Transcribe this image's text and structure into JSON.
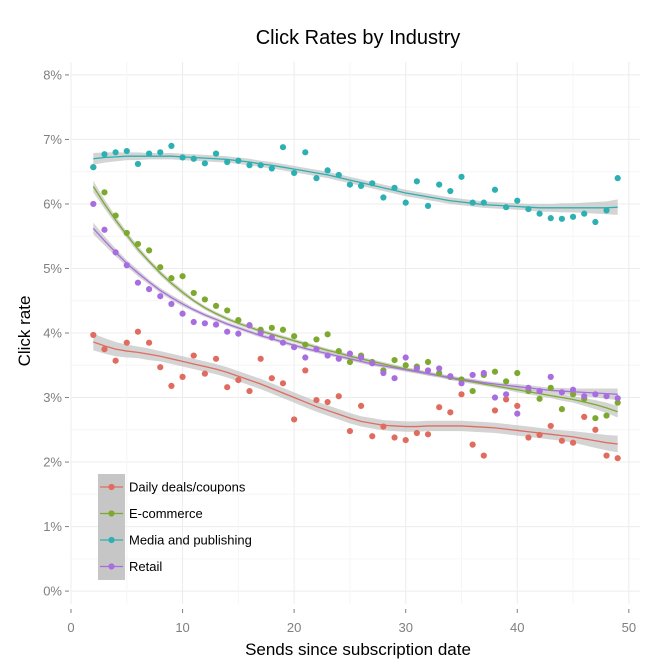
{
  "chart_data": {
    "type": "scatter",
    "title": "Click Rates by Industry",
    "xlabel": "Sends since subscription date",
    "ylabel": "Click rate",
    "xlim": [
      0,
      51
    ],
    "ylim": [
      -0.2,
      8.2
    ],
    "x_ticks": [
      0,
      10,
      20,
      30,
      40,
      50
    ],
    "x_tick_labels": [
      "0",
      "10",
      "20",
      "30",
      "40",
      "50"
    ],
    "y_ticks": [
      0,
      1,
      2,
      3,
      4,
      5,
      6,
      7,
      8
    ],
    "y_tick_labels": [
      "0%",
      "1%",
      "2%",
      "3%",
      "4%",
      "5%",
      "6%",
      "7%",
      "8%"
    ],
    "grid": true,
    "legend_position": "bottom-left",
    "smoothing": "loess with confidence band",
    "x": [
      2,
      3,
      4,
      5,
      6,
      7,
      8,
      9,
      10,
      11,
      12,
      13,
      14,
      15,
      16,
      17,
      18,
      19,
      20,
      21,
      22,
      23,
      24,
      25,
      26,
      27,
      28,
      29,
      30,
      31,
      32,
      33,
      34,
      35,
      36,
      37,
      38,
      39,
      40,
      41,
      42,
      43,
      44,
      45,
      46,
      47,
      48,
      49
    ],
    "series": [
      {
        "name": "Daily deals/coupons",
        "color": "#e06c60",
        "values": [
          3.97,
          3.75,
          3.57,
          3.85,
          4.02,
          3.85,
          3.47,
          3.18,
          3.32,
          3.65,
          3.37,
          3.6,
          3.16,
          3.27,
          3.1,
          3.6,
          3.3,
          3.22,
          2.66,
          3.42,
          2.96,
          2.93,
          3.02,
          2.48,
          2.87,
          2.4,
          2.55,
          2.38,
          2.34,
          2.45,
          2.43,
          2.85,
          2.77,
          3.05,
          2.27,
          2.1,
          2.8,
          2.97,
          2.87,
          2.38,
          2.42,
          2.56,
          2.33,
          2.3,
          2.7,
          2.5,
          2.1,
          2.06
        ],
        "trend": [
          3.86,
          3.8,
          3.75,
          3.72,
          3.7,
          3.67,
          3.64,
          3.6,
          3.56,
          3.52,
          3.48,
          3.44,
          3.39,
          3.33,
          3.27,
          3.21,
          3.14,
          3.07,
          3.0,
          2.93,
          2.86,
          2.8,
          2.74,
          2.68,
          2.63,
          2.6,
          2.57,
          2.56,
          2.55,
          2.55,
          2.56,
          2.56,
          2.56,
          2.56,
          2.55,
          2.54,
          2.53,
          2.51,
          2.49,
          2.47,
          2.45,
          2.43,
          2.41,
          2.39,
          2.36,
          2.33,
          2.3,
          2.28
        ],
        "band": [
          0.13,
          0.12,
          0.11,
          0.1,
          0.09,
          0.09,
          0.08,
          0.08,
          0.08,
          0.08,
          0.08,
          0.08,
          0.08,
          0.08,
          0.08,
          0.08,
          0.08,
          0.08,
          0.08,
          0.08,
          0.08,
          0.08,
          0.08,
          0.08,
          0.08,
          0.08,
          0.08,
          0.08,
          0.08,
          0.08,
          0.08,
          0.08,
          0.08,
          0.08,
          0.08,
          0.08,
          0.08,
          0.08,
          0.08,
          0.08,
          0.08,
          0.08,
          0.08,
          0.09,
          0.1,
          0.11,
          0.12,
          0.13
        ]
      },
      {
        "name": "E-commerce",
        "color": "#7daa2e",
        "values": [
          6.57,
          6.18,
          5.82,
          5.55,
          5.38,
          5.28,
          5.02,
          4.85,
          4.88,
          4.62,
          4.52,
          4.42,
          4.35,
          4.2,
          4.12,
          4.05,
          4.08,
          4.05,
          3.95,
          3.82,
          3.9,
          3.98,
          3.72,
          3.55,
          3.65,
          3.55,
          3.42,
          3.58,
          3.5,
          3.48,
          3.55,
          3.38,
          3.32,
          3.28,
          3.1,
          3.35,
          3.4,
          3.25,
          3.38,
          3.1,
          2.98,
          3.15,
          2.82,
          3.05,
          2.98,
          2.68,
          2.72,
          2.92
        ],
        "trend": [
          6.27,
          6.0,
          5.75,
          5.52,
          5.3,
          5.11,
          4.93,
          4.77,
          4.63,
          4.5,
          4.39,
          4.3,
          4.22,
          4.15,
          4.09,
          4.03,
          3.98,
          3.93,
          3.88,
          3.83,
          3.78,
          3.73,
          3.69,
          3.64,
          3.6,
          3.56,
          3.52,
          3.48,
          3.44,
          3.41,
          3.37,
          3.34,
          3.3,
          3.27,
          3.24,
          3.21,
          3.18,
          3.15,
          3.12,
          3.09,
          3.06,
          3.03,
          3.0,
          2.97,
          2.93,
          2.89,
          2.84,
          2.78
        ],
        "band": [
          0.09,
          0.07,
          0.06,
          0.05,
          0.05,
          0.04,
          0.04,
          0.04,
          0.04,
          0.03,
          0.03,
          0.03,
          0.03,
          0.03,
          0.03,
          0.03,
          0.03,
          0.03,
          0.03,
          0.03,
          0.03,
          0.03,
          0.03,
          0.03,
          0.03,
          0.03,
          0.03,
          0.03,
          0.03,
          0.03,
          0.03,
          0.03,
          0.03,
          0.03,
          0.03,
          0.03,
          0.03,
          0.03,
          0.04,
          0.04,
          0.04,
          0.04,
          0.05,
          0.05,
          0.06,
          0.07,
          0.08,
          0.09
        ]
      },
      {
        "name": "Media and publishing",
        "color": "#2cb0b2",
        "values": [
          6.57,
          6.77,
          6.8,
          6.82,
          6.62,
          6.78,
          6.8,
          6.9,
          6.72,
          6.7,
          6.63,
          6.78,
          6.65,
          6.67,
          6.6,
          6.6,
          6.55,
          6.88,
          6.48,
          6.8,
          6.4,
          6.52,
          6.45,
          6.3,
          6.28,
          6.32,
          6.1,
          6.25,
          6.02,
          6.35,
          5.97,
          6.3,
          6.2,
          6.42,
          6.02,
          6.02,
          6.22,
          5.95,
          6.05,
          5.92,
          5.85,
          5.78,
          5.77,
          5.8,
          5.85,
          5.72,
          5.9,
          6.4
        ],
        "trend": [
          6.7,
          6.72,
          6.73,
          6.74,
          6.74,
          6.74,
          6.74,
          6.74,
          6.73,
          6.72,
          6.71,
          6.7,
          6.69,
          6.67,
          6.65,
          6.62,
          6.6,
          6.57,
          6.54,
          6.51,
          6.48,
          6.45,
          6.41,
          6.37,
          6.33,
          6.29,
          6.25,
          6.21,
          6.17,
          6.14,
          6.11,
          6.08,
          6.05,
          6.03,
          6.01,
          5.99,
          5.98,
          5.97,
          5.96,
          5.95,
          5.94,
          5.94,
          5.94,
          5.94,
          5.94,
          5.94,
          5.94,
          5.95
        ],
        "band": [
          0.09,
          0.08,
          0.07,
          0.06,
          0.06,
          0.05,
          0.05,
          0.05,
          0.05,
          0.05,
          0.05,
          0.05,
          0.05,
          0.05,
          0.05,
          0.05,
          0.05,
          0.05,
          0.05,
          0.05,
          0.05,
          0.05,
          0.05,
          0.05,
          0.05,
          0.05,
          0.05,
          0.05,
          0.05,
          0.05,
          0.05,
          0.05,
          0.05,
          0.05,
          0.05,
          0.05,
          0.05,
          0.05,
          0.05,
          0.05,
          0.06,
          0.06,
          0.07,
          0.07,
          0.08,
          0.09,
          0.1,
          0.12
        ]
      },
      {
        "name": "Retail",
        "color": "#a86ee0",
        "values": [
          6.0,
          5.6,
          5.25,
          5.05,
          4.78,
          4.68,
          4.57,
          4.45,
          4.3,
          4.17,
          4.15,
          4.13,
          4.02,
          3.99,
          4.12,
          4.0,
          3.93,
          3.85,
          3.78,
          3.62,
          3.75,
          3.65,
          3.6,
          3.68,
          3.62,
          3.53,
          3.38,
          3.3,
          3.62,
          3.45,
          3.42,
          3.45,
          3.33,
          3.22,
          3.35,
          3.38,
          3.0,
          3.05,
          2.75,
          3.15,
          3.1,
          3.32,
          3.08,
          3.12,
          3.02,
          3.05,
          3.02,
          2.99
        ],
        "trend": [
          5.62,
          5.43,
          5.25,
          5.08,
          4.93,
          4.79,
          4.66,
          4.55,
          4.45,
          4.36,
          4.28,
          4.21,
          4.14,
          4.08,
          4.02,
          3.96,
          3.91,
          3.86,
          3.81,
          3.76,
          3.72,
          3.68,
          3.64,
          3.6,
          3.56,
          3.52,
          3.49,
          3.46,
          3.43,
          3.4,
          3.37,
          3.34,
          3.31,
          3.28,
          3.26,
          3.23,
          3.21,
          3.19,
          3.17,
          3.15,
          3.13,
          3.11,
          3.1,
          3.09,
          3.08,
          3.07,
          3.06,
          3.05
        ],
        "band": [
          0.09,
          0.07,
          0.06,
          0.05,
          0.05,
          0.04,
          0.04,
          0.04,
          0.04,
          0.03,
          0.03,
          0.03,
          0.03,
          0.03,
          0.03,
          0.03,
          0.03,
          0.03,
          0.03,
          0.03,
          0.03,
          0.03,
          0.03,
          0.03,
          0.03,
          0.03,
          0.03,
          0.03,
          0.03,
          0.03,
          0.03,
          0.03,
          0.03,
          0.03,
          0.03,
          0.03,
          0.03,
          0.03,
          0.04,
          0.04,
          0.04,
          0.04,
          0.05,
          0.05,
          0.06,
          0.07,
          0.08,
          0.09
        ]
      }
    ]
  }
}
